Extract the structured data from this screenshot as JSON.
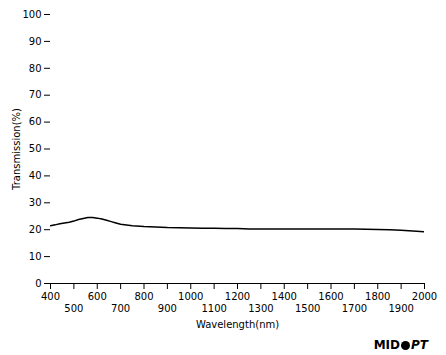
{
  "chart_data": {
    "type": "line",
    "xlabel": "Wavelength(nm)",
    "ylabel": "Transmission(%)",
    "x": [
      400,
      420,
      440,
      460,
      480,
      500,
      520,
      540,
      560,
      580,
      600,
      620,
      640,
      660,
      680,
      700,
      750,
      800,
      850,
      900,
      950,
      1000,
      1050,
      1100,
      1150,
      1200,
      1250,
      1300,
      1350,
      1400,
      1450,
      1500,
      1550,
      1600,
      1650,
      1700,
      1750,
      1800,
      1850,
      1900,
      1950,
      2000
    ],
    "values": [
      21.5,
      21.8,
      22.2,
      22.5,
      22.8,
      23.2,
      23.8,
      24.2,
      24.5,
      24.5,
      24.3,
      24.0,
      23.5,
      23.0,
      22.5,
      22.0,
      21.5,
      21.2,
      21.0,
      20.8,
      20.7,
      20.6,
      20.5,
      20.5,
      20.4,
      20.4,
      20.3,
      20.3,
      20.3,
      20.3,
      20.3,
      20.3,
      20.3,
      20.3,
      20.3,
      20.3,
      20.2,
      20.1,
      20.0,
      19.8,
      19.5,
      19.2
    ],
    "xlim": [
      400,
      2000
    ],
    "ylim": [
      0,
      100
    ],
    "xticks": [
      400,
      500,
      600,
      700,
      800,
      900,
      1000,
      1100,
      1200,
      1300,
      1400,
      1500,
      1600,
      1700,
      1800,
      1900,
      2000
    ],
    "yticks": [
      0,
      10,
      20,
      30,
      40,
      50,
      60,
      70,
      80,
      90,
      100
    ],
    "grid": false,
    "annotations": [
      "MID",
      "PT"
    ]
  }
}
